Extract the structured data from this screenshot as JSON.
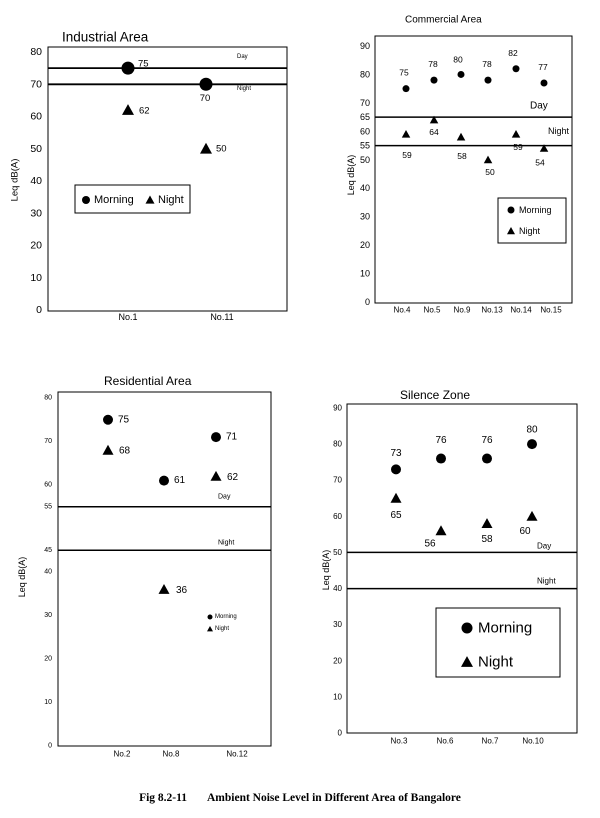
{
  "caption": {
    "figure_number": "Fig 8.2-11",
    "title": "Ambient Noise Level in Different Area of Bangalore"
  },
  "chart_data": [
    {
      "type": "scatter",
      "title": "Industrial Area",
      "ylabel": "Leq dB(A)",
      "ylim": [
        0,
        80
      ],
      "yticks": [
        0,
        10,
        20,
        30,
        40,
        50,
        60,
        70,
        80
      ],
      "categories": [
        "No.1",
        "No.11"
      ],
      "series": [
        {
          "name": "Morning",
          "marker": "circle",
          "values": [
            75,
            70
          ]
        },
        {
          "name": "Night",
          "marker": "triangle",
          "values": [
            62,
            50
          ]
        }
      ],
      "reference_lines": [
        {
          "label": "Day",
          "value": 75
        },
        {
          "label": "Night",
          "value": 70
        }
      ],
      "legend": "middle-left",
      "grid": false
    },
    {
      "type": "scatter",
      "title": "Commercial Area",
      "ylabel": "Leq dB(A)",
      "ylim": [
        0,
        90
      ],
      "yticks": [
        0,
        10,
        20,
        30,
        40,
        50,
        55,
        60,
        65,
        70,
        80,
        90
      ],
      "categories": [
        "No.4",
        "No.5",
        "No.9",
        "No.13",
        "No.14",
        "No.15"
      ],
      "series": [
        {
          "name": "Morning",
          "marker": "circle",
          "values": [
            75,
            78,
            80,
            78,
            82,
            77
          ]
        },
        {
          "name": "Night",
          "marker": "triangle",
          "values": [
            59,
            64,
            58,
            50,
            59,
            54
          ]
        }
      ],
      "reference_lines": [
        {
          "label": "Day",
          "value": 65
        },
        {
          "label": "Night",
          "value": 55
        }
      ],
      "legend": "right",
      "grid": false
    },
    {
      "type": "scatter",
      "title": "Residential Area",
      "ylabel": "Leq dB(A)",
      "ylim": [
        0,
        80
      ],
      "yticks": [
        0,
        10,
        20,
        30,
        40,
        45,
        55,
        60,
        70,
        80
      ],
      "categories": [
        "No.2",
        "No.8",
        "No.12"
      ],
      "series": [
        {
          "name": "Morning",
          "marker": "circle",
          "values": [
            75,
            61,
            71
          ]
        },
        {
          "name": "Night",
          "marker": "triangle",
          "values": [
            68,
            36,
            62
          ]
        }
      ],
      "reference_lines": [
        {
          "label": "Day",
          "value": 55
        },
        {
          "label": "Night",
          "value": 45
        }
      ],
      "legend": "lower-right",
      "grid": false
    },
    {
      "type": "scatter",
      "title": "Silence Zone",
      "ylabel": "Leq dB(A)",
      "ylim": [
        0,
        90
      ],
      "yticks": [
        0,
        10,
        20,
        30,
        40,
        50,
        60,
        70,
        80,
        90
      ],
      "categories": [
        "No.3",
        "No.6",
        "No.7",
        "No.10"
      ],
      "series": [
        {
          "name": "Morning",
          "marker": "circle",
          "values": [
            73,
            76,
            76,
            80
          ]
        },
        {
          "name": "Night",
          "marker": "triangle",
          "values": [
            65,
            56,
            58,
            60
          ]
        }
      ],
      "reference_lines": [
        {
          "label": "Day",
          "value": 50
        },
        {
          "label": "Night",
          "value": 40
        }
      ],
      "legend": "lower-right",
      "grid": false
    }
  ]
}
